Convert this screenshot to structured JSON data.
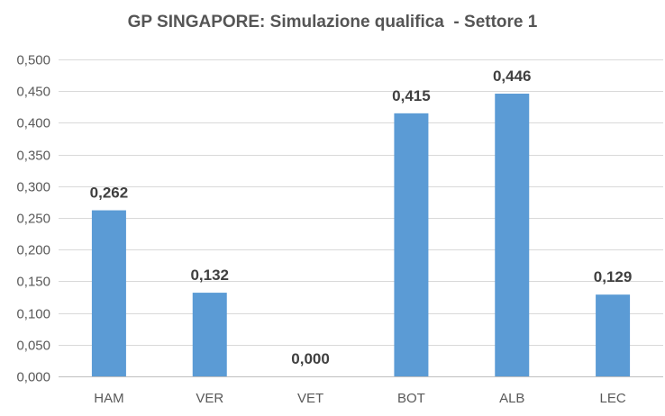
{
  "chart_data": {
    "type": "bar",
    "title": "GP SINGAPORE: Simulazione qualifica  - Settore 1",
    "xlabel": "",
    "ylabel": "",
    "categories": [
      "HAM",
      "VER",
      "VET",
      "BOT",
      "ALB",
      "LEC"
    ],
    "values": [
      0.262,
      0.132,
      0.0,
      0.415,
      0.446,
      0.129
    ],
    "data_labels": [
      "0,262",
      "0,132",
      "0,000",
      "0,415",
      "0,446",
      "0,129"
    ],
    "ylim": [
      0,
      0.5
    ],
    "yticks": [
      0,
      0.05,
      0.1,
      0.15,
      0.2,
      0.25,
      0.3,
      0.35,
      0.4,
      0.45,
      0.5
    ],
    "ytick_labels": [
      "0,000",
      "0,050",
      "0,100",
      "0,150",
      "0,200",
      "0,250",
      "0,300",
      "0,350",
      "0,400",
      "0,450",
      "0,500"
    ],
    "grid": true,
    "legend": "none",
    "bar_color": "#5b9bd5"
  }
}
